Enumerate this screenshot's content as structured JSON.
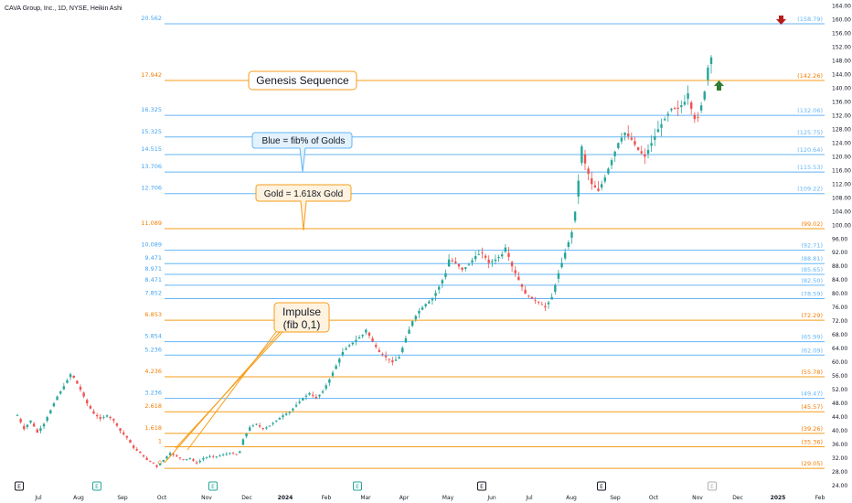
{
  "title": "CAVA Group, Inc., 1D, NYSE, Heikin Ashi",
  "colors": {
    "gold": "#f59e1a",
    "blue": "#64b5f6",
    "up": "#26a69a",
    "down": "#ef5350",
    "grid_text": "#131722"
  },
  "annotations": {
    "genesis": "Genesis Sequence",
    "blue_note": "Blue = fib% of Golds",
    "gold_note": "Gold = 1.618x Gold",
    "impulse_line1": "Impulse",
    "impulse_line2": "(fib 0,1)"
  },
  "chart_data": {
    "type": "candlestick",
    "chart_style": "Heikin Ashi",
    "symbol": "CAVA Group, Inc.",
    "timeframe": "1D",
    "exchange": "NYSE",
    "ylim": [
      24,
      164
    ],
    "y_ticks": [
      "164.00",
      "160.00",
      "156.00",
      "152.00",
      "148.00",
      "144.00",
      "140.00",
      "136.00",
      "132.00",
      "128.00",
      "124.00",
      "120.00",
      "116.00",
      "112.00",
      "108.00",
      "104.00",
      "100.00",
      "96.00",
      "92.00",
      "88.00",
      "84.00",
      "80.00",
      "76.00",
      "72.00",
      "68.00",
      "64.00",
      "60.00",
      "56.00",
      "52.00",
      "48.00",
      "44.00",
      "40.00",
      "36.00",
      "32.00",
      "28.00",
      "24.00"
    ],
    "x_ticks": [
      "Jul",
      "Aug",
      "Sep",
      "Oct",
      "Nov",
      "Dec",
      "2024",
      "Feb",
      "Mar",
      "Apr",
      "May",
      "Jun",
      "Jul",
      "Aug",
      "Sep",
      "Oct",
      "Nov",
      "Dec",
      "2025",
      "Feb"
    ],
    "fib_levels": [
      {
        "ratio": "20.562",
        "price": 158.79,
        "right_label": "(158.79)",
        "color": "blue"
      },
      {
        "ratio": "17.942",
        "price": 142.26,
        "right_label": "(142.26)",
        "color": "gold"
      },
      {
        "ratio": "16.325",
        "price": 132.06,
        "right_label": "(132.06)",
        "color": "blue"
      },
      {
        "ratio": "15.325",
        "price": 125.75,
        "right_label": "(125.75)",
        "color": "blue"
      },
      {
        "ratio": "14.515",
        "price": 120.64,
        "right_label": "(120.64)",
        "color": "blue"
      },
      {
        "ratio": "13.706",
        "price": 115.53,
        "right_label": "(115.53)",
        "color": "blue"
      },
      {
        "ratio": "12.706",
        "price": 109.22,
        "right_label": "(109.22)",
        "color": "blue"
      },
      {
        "ratio": "11.089",
        "price": 99.02,
        "right_label": "(99.02)",
        "color": "gold"
      },
      {
        "ratio": "10.089",
        "price": 92.71,
        "right_label": "(92.71)",
        "color": "blue"
      },
      {
        "ratio": "9.471",
        "price": 88.81,
        "right_label": "(88.81)",
        "color": "blue"
      },
      {
        "ratio": "8.971",
        "price": 85.65,
        "right_label": "(85.65)",
        "color": "blue"
      },
      {
        "ratio": "8.471",
        "price": 82.5,
        "right_label": "(82.50)",
        "color": "blue"
      },
      {
        "ratio": "7.852",
        "price": 78.59,
        "right_label": "(78.59)",
        "color": "blue"
      },
      {
        "ratio": "6.853",
        "price": 72.29,
        "right_label": "(72.29)",
        "color": "gold"
      },
      {
        "ratio": "5.854",
        "price": 65.99,
        "right_label": "(65.99)",
        "color": "blue"
      },
      {
        "ratio": "5.236",
        "price": 62.09,
        "right_label": "(62.09)",
        "color": "blue"
      },
      {
        "ratio": "4.236",
        "price": 55.78,
        "right_label": "(55.78)",
        "color": "gold"
      },
      {
        "ratio": "3.236",
        "price": 49.47,
        "right_label": "(49.47)",
        "color": "blue"
      },
      {
        "ratio": "2.618",
        "price": 45.57,
        "right_label": "(45.57)",
        "color": "gold"
      },
      {
        "ratio": "1.618",
        "price": 39.26,
        "right_label": "(39.26)",
        "color": "gold"
      },
      {
        "ratio": "1",
        "price": 35.36,
        "right_label": "(35.36)",
        "color": "gold"
      },
      {
        "ratio": "0",
        "price": 29.05,
        "right_label": "(29.05)",
        "color": "gold"
      }
    ],
    "price_path": [
      [
        0,
        44.5
      ],
      [
        2,
        40.5
      ],
      [
        4,
        43
      ],
      [
        6,
        39.5
      ],
      [
        8,
        42
      ],
      [
        10,
        46
      ],
      [
        12,
        50
      ],
      [
        14,
        53
      ],
      [
        16,
        56.5
      ],
      [
        17,
        55.5
      ],
      [
        19,
        52
      ],
      [
        21,
        48
      ],
      [
        23,
        45
      ],
      [
        25,
        43.5
      ],
      [
        27,
        44.5
      ],
      [
        29,
        43
      ],
      [
        31,
        40
      ],
      [
        33,
        38
      ],
      [
        35,
        35
      ],
      [
        37,
        33.5
      ],
      [
        39,
        31.5
      ],
      [
        41,
        30.5
      ],
      [
        42,
        29.5
      ],
      [
        44,
        31.5
      ],
      [
        46,
        33.5
      ],
      [
        48,
        32.5
      ],
      [
        50,
        31.5
      ],
      [
        52,
        32
      ],
      [
        54,
        30.5
      ],
      [
        56,
        32
      ],
      [
        58,
        32.5
      ],
      [
        60,
        32.5
      ],
      [
        62,
        33
      ],
      [
        64,
        33.5
      ],
      [
        66,
        33
      ],
      [
        67,
        34
      ],
      [
        68,
        37.5
      ],
      [
        70,
        41
      ],
      [
        72,
        42
      ],
      [
        74,
        40.5
      ],
      [
        76,
        41.5
      ],
      [
        78,
        43
      ],
      [
        80,
        44.5
      ],
      [
        82,
        45.5
      ],
      [
        84,
        47.5
      ],
      [
        86,
        49.5
      ],
      [
        88,
        51
      ],
      [
        90,
        49.5
      ],
      [
        92,
        51.5
      ],
      [
        94,
        55
      ],
      [
        96,
        59
      ],
      [
        98,
        63
      ],
      [
        100,
        65
      ],
      [
        102,
        66.5
      ],
      [
        104,
        68
      ],
      [
        105,
        69.5
      ],
      [
        107,
        66
      ],
      [
        109,
        63
      ],
      [
        111,
        61.5
      ],
      [
        113,
        60
      ],
      [
        115,
        61.5
      ],
      [
        117,
        67
      ],
      [
        119,
        72
      ],
      [
        121,
        75
      ],
      [
        123,
        77
      ],
      [
        125,
        78.5
      ],
      [
        127,
        82
      ],
      [
        129,
        86
      ],
      [
        130,
        90
      ],
      [
        132,
        89
      ],
      [
        134,
        87
      ],
      [
        136,
        88.5
      ],
      [
        138,
        91
      ],
      [
        140,
        92
      ],
      [
        142,
        89
      ],
      [
        144,
        90
      ],
      [
        146,
        91.5
      ],
      [
        147,
        93.5
      ],
      [
        149,
        88
      ],
      [
        151,
        84
      ],
      [
        153,
        80
      ],
      [
        155,
        78.5
      ],
      [
        157,
        77.5
      ],
      [
        159,
        76
      ],
      [
        161,
        79
      ],
      [
        163,
        86
      ],
      [
        165,
        92
      ],
      [
        167,
        98
      ],
      [
        168,
        104
      ],
      [
        169,
        113
      ],
      [
        170,
        123
      ],
      [
        171,
        118
      ],
      [
        173,
        112
      ],
      [
        175,
        110
      ],
      [
        177,
        114
      ],
      [
        179,
        119
      ],
      [
        181,
        124
      ],
      [
        183,
        127
      ],
      [
        185,
        125
      ],
      [
        187,
        122
      ],
      [
        189,
        120
      ],
      [
        191,
        124
      ],
      [
        193,
        128
      ],
      [
        195,
        131
      ],
      [
        197,
        134
      ],
      [
        199,
        134
      ],
      [
        201,
        136
      ],
      [
        202,
        138.5
      ],
      [
        203,
        134
      ],
      [
        204,
        131
      ],
      [
        205,
        131.5
      ],
      [
        206,
        135
      ],
      [
        207,
        139
      ],
      [
        208,
        146
      ],
      [
        209,
        149
      ]
    ]
  },
  "badges": [
    "E",
    "E",
    "E",
    "E",
    "E",
    "E",
    "E",
    "E"
  ]
}
